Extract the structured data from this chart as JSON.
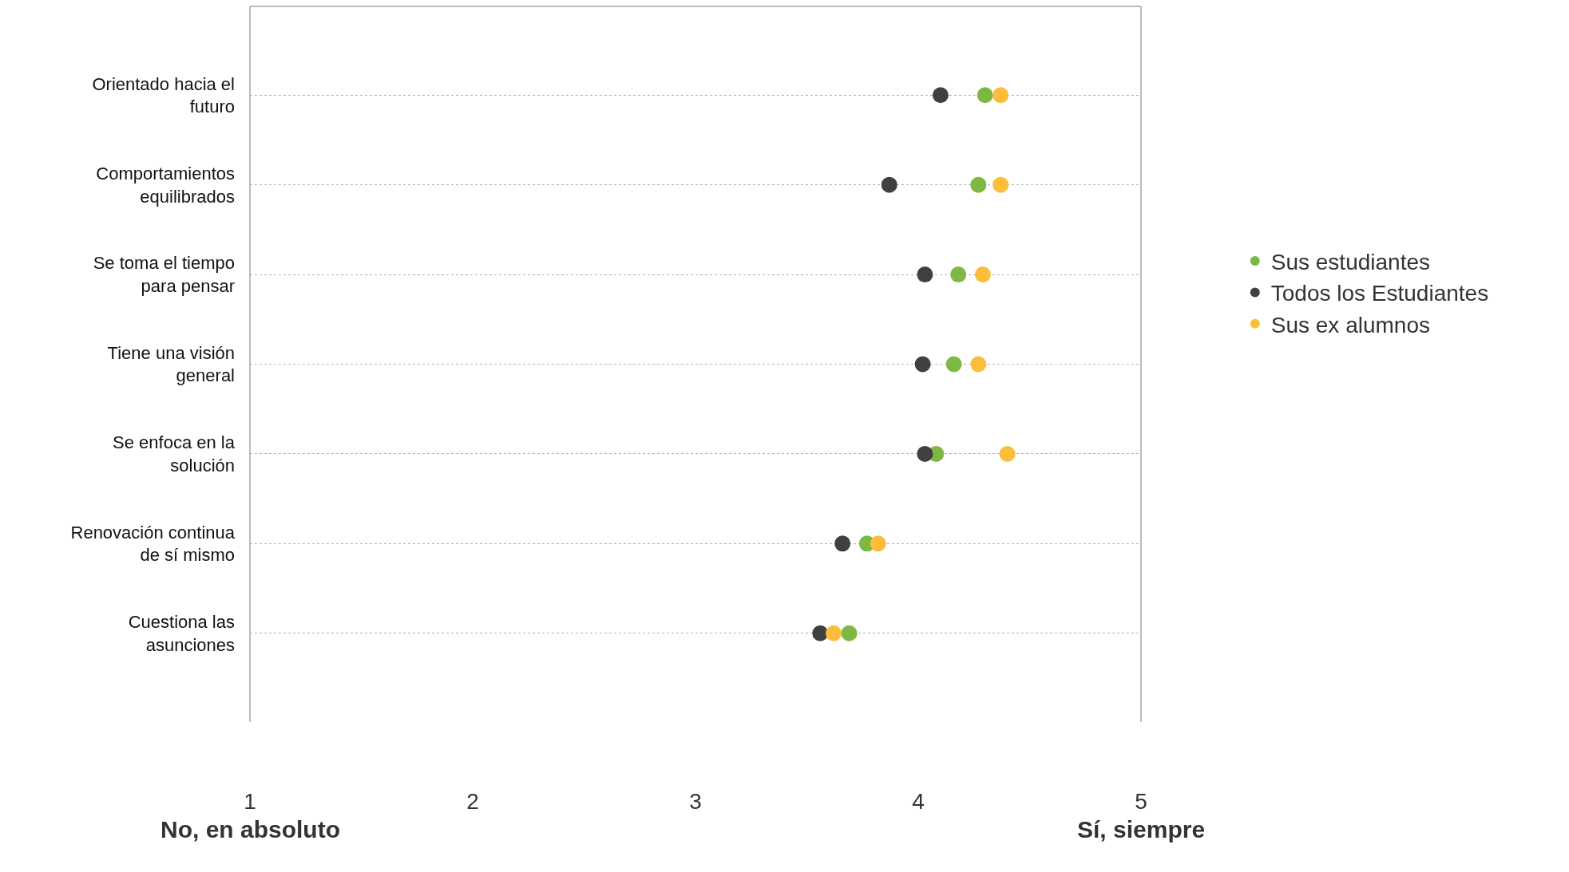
{
  "chart_data": {
    "type": "scatter",
    "categories": [
      "Orientado hacia el futuro",
      "Comportamientos equilibrados",
      "Se toma el tiempo para pensar",
      "Tiene una visión general",
      "Se enfoca en la solución",
      "Renovación continua de sí mismo",
      "Cuestiona las asunciones"
    ],
    "orientation": "horizontal",
    "xlim": [
      1,
      5
    ],
    "xticks": [
      1,
      2,
      3,
      4,
      5
    ],
    "grid": "y",
    "legend": "right",
    "marker": "circle",
    "annotations": [
      "No, en absoluto",
      "Sí, siempre"
    ],
    "series": [
      {
        "name": "Sus estudiantes",
        "color": "#7db843",
        "values": [
          4.3,
          4.27,
          4.18,
          4.16,
          4.08,
          3.77,
          3.69
        ]
      },
      {
        "name": "Todos los Estudiantes",
        "color": "#404040",
        "values": [
          4.1,
          3.87,
          4.03,
          4.02,
          4.03,
          3.66,
          3.56
        ]
      },
      {
        "name": "Sus ex alumnos",
        "color": "#fbbd3a",
        "values": [
          4.37,
          4.37,
          4.29,
          4.27,
          4.4,
          3.82,
          3.62
        ]
      }
    ]
  }
}
